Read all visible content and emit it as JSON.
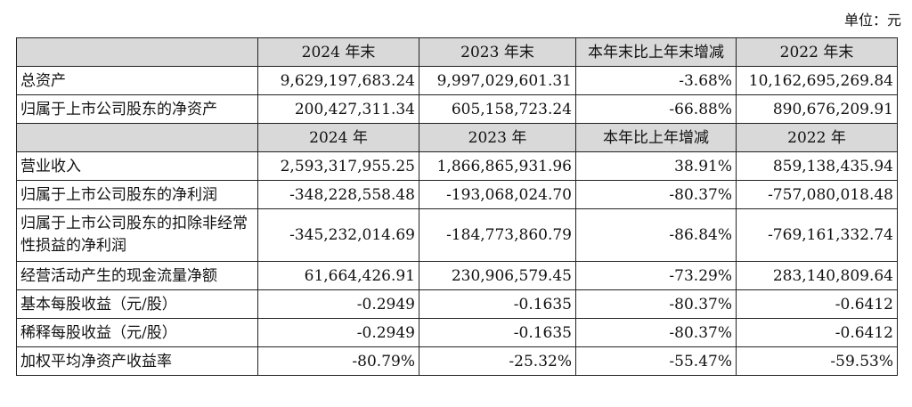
{
  "unit_label": "单位：元",
  "table": {
    "header1": [
      "",
      "2024 年末",
      "2023 年末",
      "本年末比上年末增减",
      "2022 年末"
    ],
    "rows1": [
      [
        "总资产",
        "9,629,197,683.24",
        "9,997,029,601.31",
        "-3.68%",
        "10,162,695,269.84"
      ],
      [
        "归属于上市公司股东的净资产",
        "200,427,311.34",
        "605,158,723.24",
        "-66.88%",
        "890,676,209.91"
      ]
    ],
    "header2": [
      "",
      "2024 年",
      "2023 年",
      "本年比上年增减",
      "2022 年"
    ],
    "rows2": [
      [
        "营业收入",
        "2,593,317,955.25",
        "1,866,865,931.96",
        "38.91%",
        "859,138,435.94"
      ],
      [
        "归属于上市公司股东的净利润",
        "-348,228,558.48",
        "-193,068,024.70",
        "-80.37%",
        "-757,080,018.48"
      ],
      [
        "归属于上市公司股东的扣除非经常性损益的净利润",
        "-345,232,014.69",
        "-184,773,860.79",
        "-86.84%",
        "-769,161,332.74"
      ],
      [
        "经营活动产生的现金流量净额",
        "61,664,426.91",
        "230,906,579.45",
        "-73.29%",
        "283,140,809.64"
      ],
      [
        "基本每股收益（元/股）",
        "-0.2949",
        "-0.1635",
        "-80.37%",
        "-0.6412"
      ],
      [
        "稀释每股收益（元/股）",
        "-0.2949",
        "-0.1635",
        "-80.37%",
        "-0.6412"
      ],
      [
        "加权平均净资产收益率",
        "-80.79%",
        "-25.32%",
        "-55.47%",
        "-59.53%"
      ]
    ]
  }
}
